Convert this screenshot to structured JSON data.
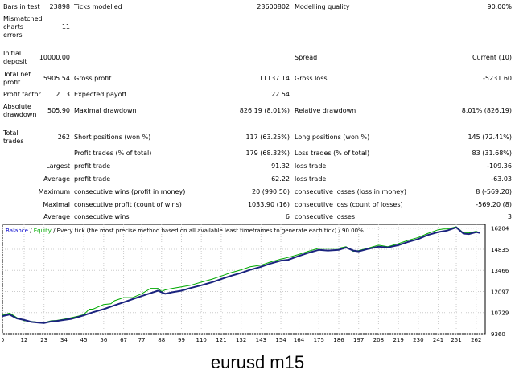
{
  "report": {
    "bars_in_test": {
      "label": "Bars in test",
      "value": "23898"
    },
    "ticks_modelled": {
      "label": "Ticks modelled",
      "value": "23600802"
    },
    "modelling_quality": {
      "label": "Modelling quality",
      "value": "90.00%"
    },
    "mismatched": {
      "label_lines": [
        "Mismatched",
        "charts",
        "errors"
      ],
      "value": "11"
    },
    "initial_deposit": {
      "label_lines": [
        "Initial",
        "deposit"
      ],
      "value": "10000.00"
    },
    "spread": {
      "label": "Spread",
      "value": "Current (10)"
    },
    "total_net_profit": {
      "label_lines": [
        "Total net",
        "profit"
      ],
      "value": "5905.54"
    },
    "gross_profit": {
      "label": "Gross profit",
      "value": "11137.14"
    },
    "gross_loss": {
      "label": "Gross loss",
      "value": "-5231.60"
    },
    "profit_factor": {
      "label": "Profit factor",
      "value": "2.13"
    },
    "expected_payoff": {
      "label": "Expected payoff",
      "value": "22.54"
    },
    "absolute_drawdown": {
      "label_lines": [
        "Absolute",
        "drawdown"
      ],
      "value": "505.90"
    },
    "maximal_drawdown": {
      "label": "Maximal drawdown",
      "value": "826.19 (8.01%)"
    },
    "relative_drawdown": {
      "label": "Relative drawdown",
      "value": "8.01% (826.19)"
    },
    "total_trades": {
      "label_lines": [
        "Total",
        "trades"
      ],
      "value": "262"
    },
    "short_positions": {
      "label": "Short positions (won %)",
      "value": "117 (63.25%)"
    },
    "long_positions": {
      "label": "Long positions (won %)",
      "value": "145 (72.41%)"
    },
    "profit_trades": {
      "label": "Profit trades (% of total)",
      "value": "179 (68.32%)"
    },
    "loss_trades": {
      "label": "Loss trades (% of total)",
      "value": "83 (31.68%)"
    },
    "largest": {
      "prefix": "Largest",
      "profit_label": "profit trade",
      "profit_value": "91.32",
      "loss_label": "loss trade",
      "loss_value": "-109.36"
    },
    "average": {
      "prefix": "Average",
      "profit_label": "profit trade",
      "profit_value": "62.22",
      "loss_label": "loss trade",
      "loss_value": "-63.03"
    },
    "maximum": {
      "prefix": "Maximum",
      "wins_label": "consecutive wins (profit in money)",
      "wins_value": "20 (990.50)",
      "losses_label": "consecutive losses (loss in money)",
      "losses_value": "8 (-569.20)"
    },
    "maximal": {
      "prefix": "Maximal",
      "profit_label": "consecutive profit (count of wins)",
      "profit_value": "1033.90 (16)",
      "loss_label": "consecutive loss (count of losses)",
      "loss_value": "-569.20 (8)"
    },
    "average_consecutive": {
      "prefix": "Average",
      "wins_label": "consecutive wins",
      "wins_value": "6",
      "losses_label": "consecutive losses",
      "losses_value": "3"
    }
  },
  "chart_header": {
    "balance": "Balance",
    "sep": " / ",
    "equity": "Equity",
    "rest": " / Every tick (the most precise method based on all available least timeframes to generate each tick) / 90.00%"
  },
  "caption": "eurusd m15",
  "colors": {
    "balance": "#1a237e",
    "equity": "#00aa00",
    "grid": "#cccccc",
    "balance_text": "#0000cc",
    "equity_text": "#00aa00"
  },
  "chart_data": {
    "type": "line",
    "x_ticks": [
      "0",
      "12",
      "23",
      "34",
      "45",
      "56",
      "67",
      "77",
      "88",
      "99",
      "110",
      "121",
      "132",
      "143",
      "154",
      "164",
      "175",
      "186",
      "197",
      "208",
      "219",
      "230",
      "241",
      "251",
      "262"
    ],
    "y_ticks": [
      "9360",
      "10729",
      "12097",
      "13466",
      "14835",
      "16204"
    ],
    "ylim": [
      9360,
      16450
    ],
    "xlim": [
      0,
      267
    ],
    "series": [
      {
        "name": "Balance",
        "x": [
          0,
          4,
          8,
          12,
          16,
          20,
          23,
          27,
          30,
          34,
          38,
          42,
          45,
          50,
          56,
          62,
          67,
          72,
          77,
          82,
          86,
          88,
          90,
          94,
          99,
          104,
          110,
          116,
          121,
          126,
          132,
          137,
          143,
          148,
          154,
          158,
          164,
          169,
          175,
          180,
          186,
          190,
          194,
          197,
          202,
          208,
          213,
          219,
          224,
          230,
          235,
          241,
          246,
          251,
          255,
          258,
          262,
          264
        ],
        "y": [
          10500,
          10600,
          10350,
          10250,
          10120,
          10080,
          10050,
          10150,
          10180,
          10250,
          10320,
          10450,
          10550,
          10750,
          10950,
          11200,
          11400,
          11600,
          11800,
          12000,
          12150,
          12050,
          11950,
          12050,
          12150,
          12320,
          12500,
          12700,
          12900,
          13100,
          13300,
          13500,
          13700,
          13900,
          14100,
          14150,
          14400,
          14600,
          14800,
          14750,
          14800,
          14950,
          14750,
          14700,
          14850,
          15000,
          14950,
          15100,
          15300,
          15500,
          15750,
          15950,
          16050,
          16250,
          15850,
          15820,
          15950,
          15900
        ]
      },
      {
        "name": "Equity",
        "x": [
          0,
          4,
          8,
          12,
          16,
          20,
          23,
          27,
          30,
          34,
          38,
          42,
          45,
          48,
          50,
          56,
          60,
          62,
          67,
          72,
          77,
          82,
          86,
          88,
          90,
          94,
          99,
          104,
          110,
          116,
          121,
          126,
          132,
          137,
          143,
          148,
          154,
          158,
          164,
          169,
          175,
          180,
          186,
          190,
          194,
          197,
          202,
          208,
          213,
          219,
          224,
          230,
          235,
          241,
          244,
          246,
          251,
          255,
          258,
          262,
          264
        ],
        "y": [
          10550,
          10700,
          10400,
          10200,
          10150,
          10100,
          10080,
          10200,
          10220,
          10300,
          10400,
          10500,
          10600,
          10950,
          10950,
          11250,
          11300,
          11500,
          11700,
          11700,
          11950,
          12300,
          12300,
          12100,
          12200,
          12300,
          12400,
          12500,
          12700,
          12900,
          13100,
          13300,
          13500,
          13700,
          13800,
          14000,
          14200,
          14300,
          14500,
          14700,
          14900,
          14900,
          14900,
          15000,
          14700,
          14750,
          14900,
          15100,
          15000,
          15200,
          15400,
          15600,
          15850,
          16100,
          16150,
          16150,
          16300,
          15900,
          15900,
          16000,
          15900
        ]
      }
    ]
  }
}
